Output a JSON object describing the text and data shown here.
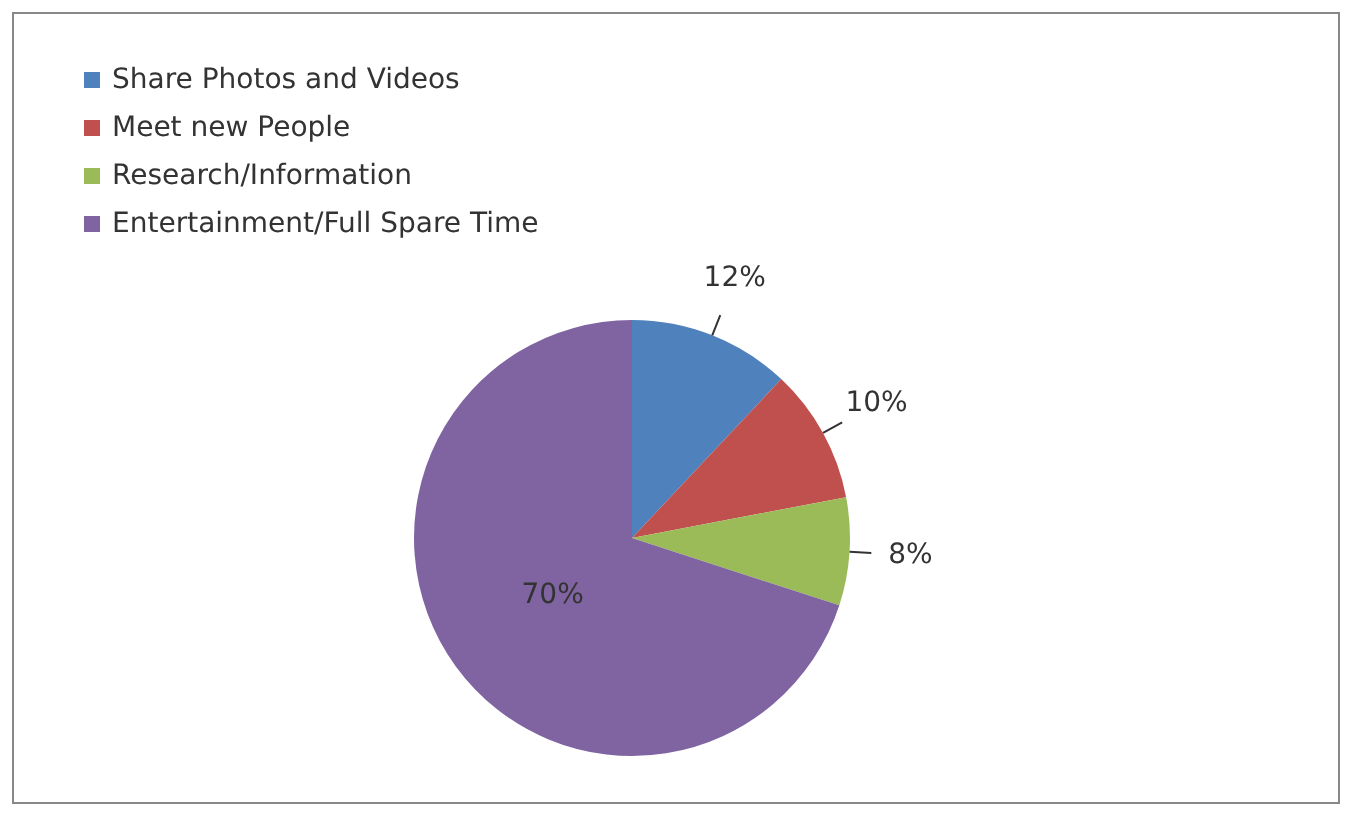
{
  "chart_data": {
    "type": "pie",
    "categories": [
      "Share Photos and Videos",
      "Meet new People",
      "Research/Information",
      "Entertainment/Full Spare Time"
    ],
    "values": [
      12,
      10,
      8,
      70
    ],
    "colors": [
      "#4f81bd",
      "#c0504d",
      "#9bbb59",
      "#8064a2"
    ],
    "value_labels": [
      "12%",
      "10%",
      "8%",
      "70%"
    ],
    "legend": "top left"
  }
}
